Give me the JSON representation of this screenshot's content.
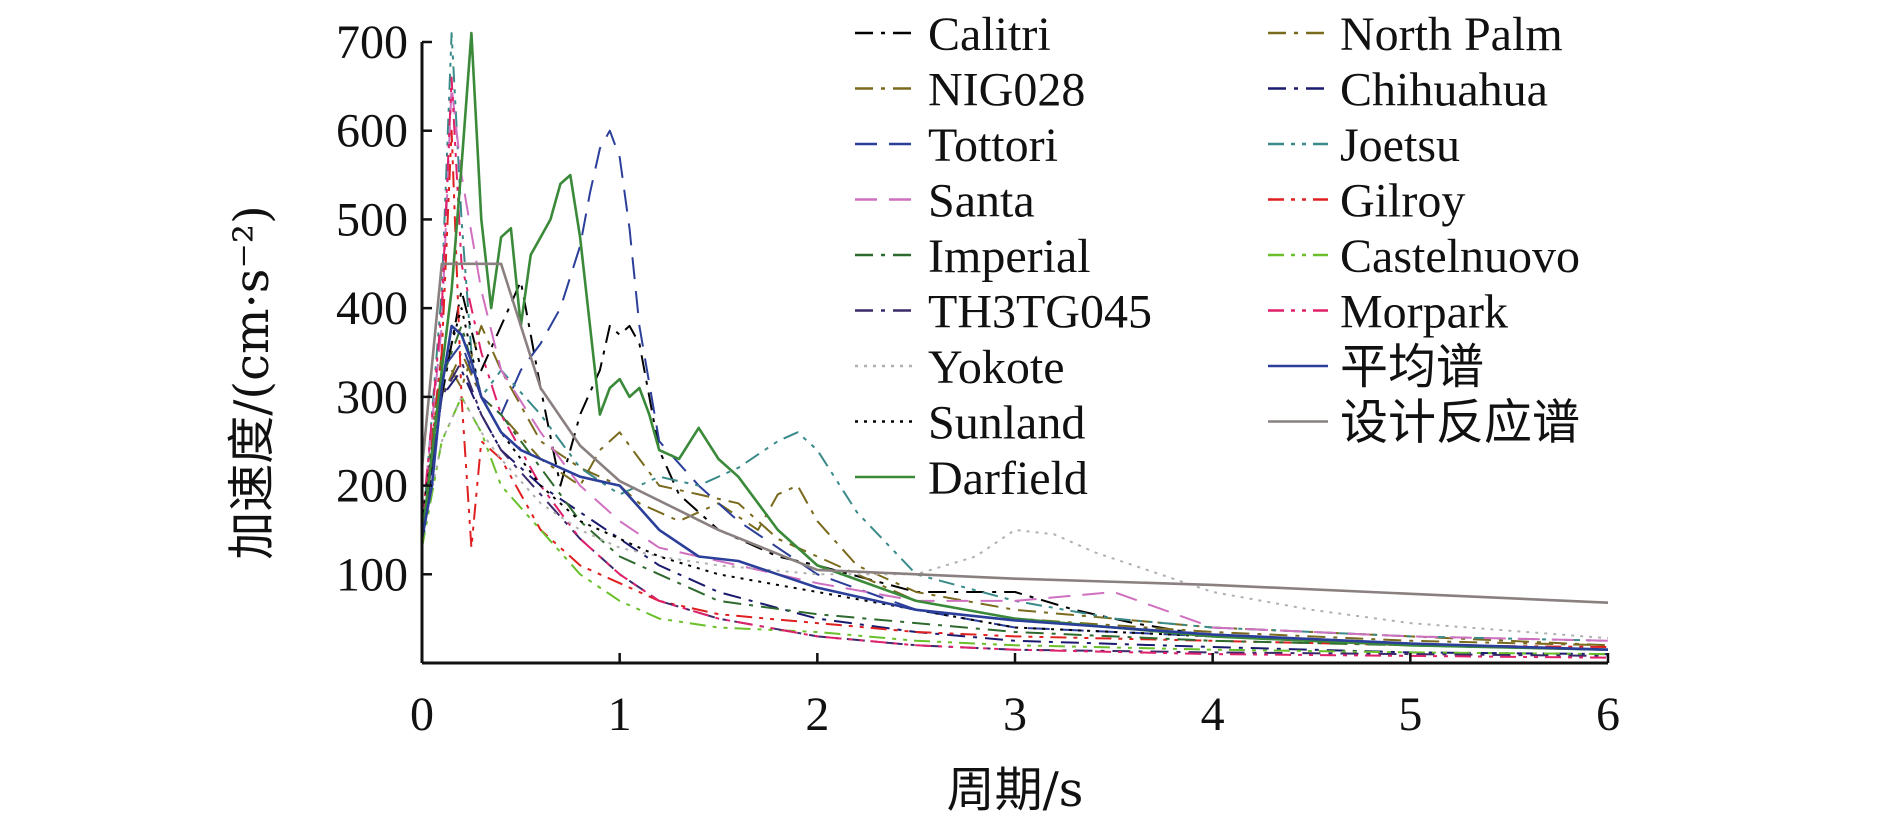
{
  "chart_data": {
    "type": "line",
    "xlabel": "周期/s",
    "ylabel": "加速度/(cm·s⁻²)",
    "xlim": [
      0,
      6
    ],
    "ylim": [
      0,
      700
    ],
    "xticks": [
      0,
      1,
      2,
      3,
      4,
      5,
      6
    ],
    "yticks": [
      100,
      200,
      300,
      400,
      500,
      600,
      700
    ],
    "grid": false,
    "legend_position": "top-right",
    "series": [
      {
        "name": "Calitri",
        "color": "#000000",
        "dash": "dashdot",
        "x": [
          0,
          0.1,
          0.2,
          0.3,
          0.4,
          0.5,
          0.6,
          0.7,
          0.8,
          0.9,
          0.95,
          1.0,
          1.05,
          1.1,
          1.2,
          1.3,
          1.5,
          1.8,
          2.0,
          2.5,
          3.0,
          3.3,
          3.6,
          4.0,
          5.0,
          6.0
        ],
        "y": [
          130,
          300,
          420,
          330,
          380,
          430,
          310,
          200,
          280,
          330,
          380,
          370,
          380,
          360,
          240,
          190,
          150,
          120,
          110,
          80,
          80,
          60,
          45,
          30,
          20,
          15
        ]
      },
      {
        "name": "North Palm",
        "color": "#7a6a1e",
        "dash": "dashdot",
        "x": [
          0,
          0.1,
          0.2,
          0.3,
          0.4,
          0.6,
          0.8,
          1.0,
          1.1,
          1.3,
          1.5,
          1.7,
          1.8,
          1.9,
          2.0,
          2.2,
          2.5,
          3.0,
          3.5,
          4.0,
          5.0,
          6.0
        ],
        "y": [
          160,
          350,
          310,
          380,
          330,
          250,
          220,
          200,
          180,
          160,
          180,
          150,
          190,
          200,
          160,
          110,
          80,
          60,
          50,
          40,
          30,
          20
        ]
      },
      {
        "name": "NIG028",
        "color": "#7a6a1e",
        "dash": "dashdot",
        "x": [
          0,
          0.1,
          0.2,
          0.3,
          0.4,
          0.6,
          0.8,
          0.9,
          1.0,
          1.1,
          1.2,
          1.4,
          1.6,
          1.8,
          2.0,
          2.5,
          3.0,
          4.0,
          5.0,
          6.0
        ],
        "y": [
          150,
          300,
          350,
          300,
          280,
          230,
          200,
          240,
          260,
          230,
          200,
          190,
          180,
          140,
          120,
          70,
          50,
          35,
          25,
          20
        ]
      },
      {
        "name": "Chihuahua",
        "color": "#1a1a6e",
        "dash": "dashdot",
        "x": [
          0,
          0.1,
          0.2,
          0.3,
          0.4,
          0.6,
          0.8,
          1.0,
          1.2,
          1.5,
          2.0,
          2.5,
          3.0,
          4.0,
          5.0,
          6.0
        ],
        "y": [
          140,
          300,
          330,
          280,
          240,
          200,
          170,
          140,
          110,
          80,
          50,
          35,
          25,
          18,
          12,
          10
        ]
      },
      {
        "name": "Tottori",
        "color": "#2b3f9a",
        "dash": "dashed",
        "x": [
          0,
          0.1,
          0.2,
          0.3,
          0.4,
          0.5,
          0.6,
          0.7,
          0.8,
          0.85,
          0.9,
          0.95,
          1.0,
          1.05,
          1.1,
          1.2,
          1.4,
          1.6,
          1.8,
          2.0,
          2.5,
          3.0,
          4.0,
          5.0,
          6.0
        ],
        "y": [
          150,
          330,
          360,
          300,
          280,
          330,
          360,
          400,
          470,
          530,
          580,
          600,
          570,
          490,
          380,
          250,
          200,
          160,
          130,
          100,
          60,
          40,
          30,
          20,
          15
        ]
      },
      {
        "name": "Joetsu",
        "color": "#3a8a8a",
        "dash": "dashdotdot",
        "x": [
          0,
          0.1,
          0.15,
          0.2,
          0.25,
          0.3,
          0.4,
          0.6,
          0.8,
          1.0,
          1.2,
          1.4,
          1.6,
          1.8,
          1.9,
          2.0,
          2.2,
          2.5,
          3.0,
          3.5,
          4.0,
          5.0,
          6.0
        ],
        "y": [
          140,
          420,
          710,
          500,
          350,
          300,
          330,
          280,
          220,
          190,
          210,
          200,
          220,
          250,
          260,
          240,
          170,
          100,
          70,
          50,
          40,
          30,
          25
        ]
      },
      {
        "name": "Santa",
        "color": "#d070c0",
        "dash": "dashed",
        "x": [
          0,
          0.1,
          0.15,
          0.2,
          0.3,
          0.4,
          0.6,
          0.8,
          1.0,
          1.2,
          1.4,
          1.6,
          1.8,
          2.0,
          2.5,
          3.0,
          3.5,
          4.0,
          5.0,
          6.0
        ],
        "y": [
          160,
          380,
          650,
          550,
          420,
          330,
          260,
          200,
          160,
          130,
          120,
          110,
          100,
          90,
          70,
          70,
          80,
          40,
          30,
          25
        ]
      },
      {
        "name": "Gilroy",
        "color": "#e02020",
        "dash": "dashdotdot",
        "x": [
          0,
          0.1,
          0.15,
          0.2,
          0.25,
          0.3,
          0.4,
          0.6,
          0.8,
          1.0,
          1.2,
          1.5,
          2.0,
          2.5,
          3.0,
          4.0,
          5.0,
          6.0
        ],
        "y": [
          140,
          350,
          600,
          300,
          130,
          250,
          230,
          150,
          110,
          90,
          70,
          55,
          45,
          35,
          30,
          25,
          20,
          18
        ]
      },
      {
        "name": "Imperial",
        "color": "#2e6a2e",
        "dash": "dashdot",
        "x": [
          0,
          0.1,
          0.2,
          0.3,
          0.4,
          0.6,
          0.8,
          1.0,
          1.2,
          1.5,
          2.0,
          2.5,
          3.0,
          4.0,
          5.0,
          6.0
        ],
        "y": [
          150,
          320,
          380,
          300,
          280,
          220,
          160,
          120,
          100,
          70,
          55,
          45,
          35,
          25,
          20,
          15
        ]
      },
      {
        "name": "Castelnuovo",
        "color": "#6ac02a",
        "dash": "dashdotdot",
        "x": [
          0,
          0.1,
          0.2,
          0.3,
          0.4,
          0.6,
          0.8,
          1.0,
          1.2,
          1.5,
          2.0,
          2.5,
          3.0,
          4.0,
          5.0,
          6.0
        ],
        "y": [
          130,
          250,
          300,
          260,
          200,
          150,
          100,
          70,
          50,
          40,
          35,
          25,
          20,
          15,
          12,
          10
        ]
      },
      {
        "name": "TH3TG045",
        "color": "#3a2a6a",
        "dash": "dashdot",
        "x": [
          0,
          0.1,
          0.2,
          0.3,
          0.4,
          0.6,
          0.8,
          1.0,
          1.2,
          1.5,
          2.0,
          2.5,
          3.0,
          4.0,
          5.0,
          6.0
        ],
        "y": [
          150,
          300,
          340,
          280,
          240,
          190,
          140,
          100,
          70,
          50,
          30,
          20,
          15,
          12,
          10,
          8
        ]
      },
      {
        "name": "Morpark",
        "color": "#e0206a",
        "dash": "dashdotdot",
        "x": [
          0,
          0.1,
          0.15,
          0.2,
          0.3,
          0.4,
          0.6,
          0.8,
          1.0,
          1.2,
          1.5,
          2.0,
          2.5,
          3.0,
          4.0,
          5.0,
          6.0
        ],
        "y": [
          150,
          400,
          660,
          450,
          350,
          280,
          200,
          140,
          100,
          70,
          50,
          30,
          20,
          15,
          10,
          8,
          6
        ]
      },
      {
        "name": "Yokote",
        "color": "#b0b0b0",
        "dash": "dotted",
        "x": [
          0,
          0.1,
          0.2,
          0.3,
          0.4,
          0.6,
          0.8,
          1.0,
          1.2,
          1.5,
          2.0,
          2.5,
          2.8,
          3.0,
          3.2,
          3.4,
          3.6,
          4.0,
          4.5,
          5.0,
          6.0
        ],
        "y": [
          140,
          250,
          300,
          260,
          230,
          180,
          150,
          130,
          120,
          110,
          100,
          100,
          120,
          150,
          145,
          125,
          110,
          80,
          60,
          45,
          28
        ]
      },
      {
        "name": "Sunland",
        "color": "#000000",
        "dash": "dotted",
        "x": [
          0,
          0.1,
          0.2,
          0.3,
          0.4,
          0.6,
          0.8,
          1.0,
          1.2,
          1.5,
          2.0,
          2.5,
          3.0,
          4.0,
          5.0,
          6.0
        ],
        "y": [
          160,
          320,
          400,
          300,
          260,
          200,
          160,
          140,
          120,
          100,
          80,
          60,
          40,
          30,
          20,
          15
        ]
      },
      {
        "name": "Darfield",
        "color": "#3a8a3a",
        "dash": "solid",
        "x": [
          0,
          0.1,
          0.15,
          0.2,
          0.25,
          0.3,
          0.35,
          0.4,
          0.45,
          0.5,
          0.55,
          0.6,
          0.65,
          0.7,
          0.75,
          0.8,
          0.85,
          0.9,
          0.95,
          1.0,
          1.05,
          1.1,
          1.15,
          1.2,
          1.3,
          1.4,
          1.5,
          1.6,
          1.8,
          2.0,
          2.5,
          3.0,
          3.5,
          4.0,
          5.0,
          6.0
        ],
        "y": [
          140,
          330,
          420,
          560,
          710,
          500,
          400,
          480,
          490,
          380,
          460,
          480,
          500,
          540,
          550,
          480,
          380,
          280,
          310,
          320,
          300,
          310,
          280,
          240,
          230,
          265,
          230,
          210,
          150,
          110,
          70,
          50,
          40,
          30,
          20,
          15
        ]
      },
      {
        "name": "平均谱",
        "color": "#2b3f9a",
        "dash": "solid",
        "x": [
          0,
          0.05,
          0.1,
          0.15,
          0.2,
          0.25,
          0.3,
          0.4,
          0.5,
          0.6,
          0.8,
          1.0,
          1.2,
          1.4,
          1.6,
          1.8,
          2.0,
          2.5,
          3.0,
          3.5,
          4.0,
          5.0,
          6.0
        ],
        "y": [
          140,
          200,
          310,
          380,
          370,
          340,
          300,
          260,
          240,
          230,
          210,
          200,
          150,
          120,
          115,
          100,
          85,
          60,
          48,
          40,
          32,
          22,
          15
        ]
      },
      {
        "name": "设计反应谱",
        "color": "#8a8080",
        "dash": "solid",
        "x": [
          0,
          0.1,
          0.4,
          0.6,
          0.8,
          1.0,
          1.5,
          2.0,
          3.0,
          4.0,
          5.0,
          6.0
        ],
        "y": [
          220,
          450,
          450,
          310,
          245,
          205,
          150,
          105,
          95,
          88,
          78,
          68
        ]
      }
    ]
  }
}
